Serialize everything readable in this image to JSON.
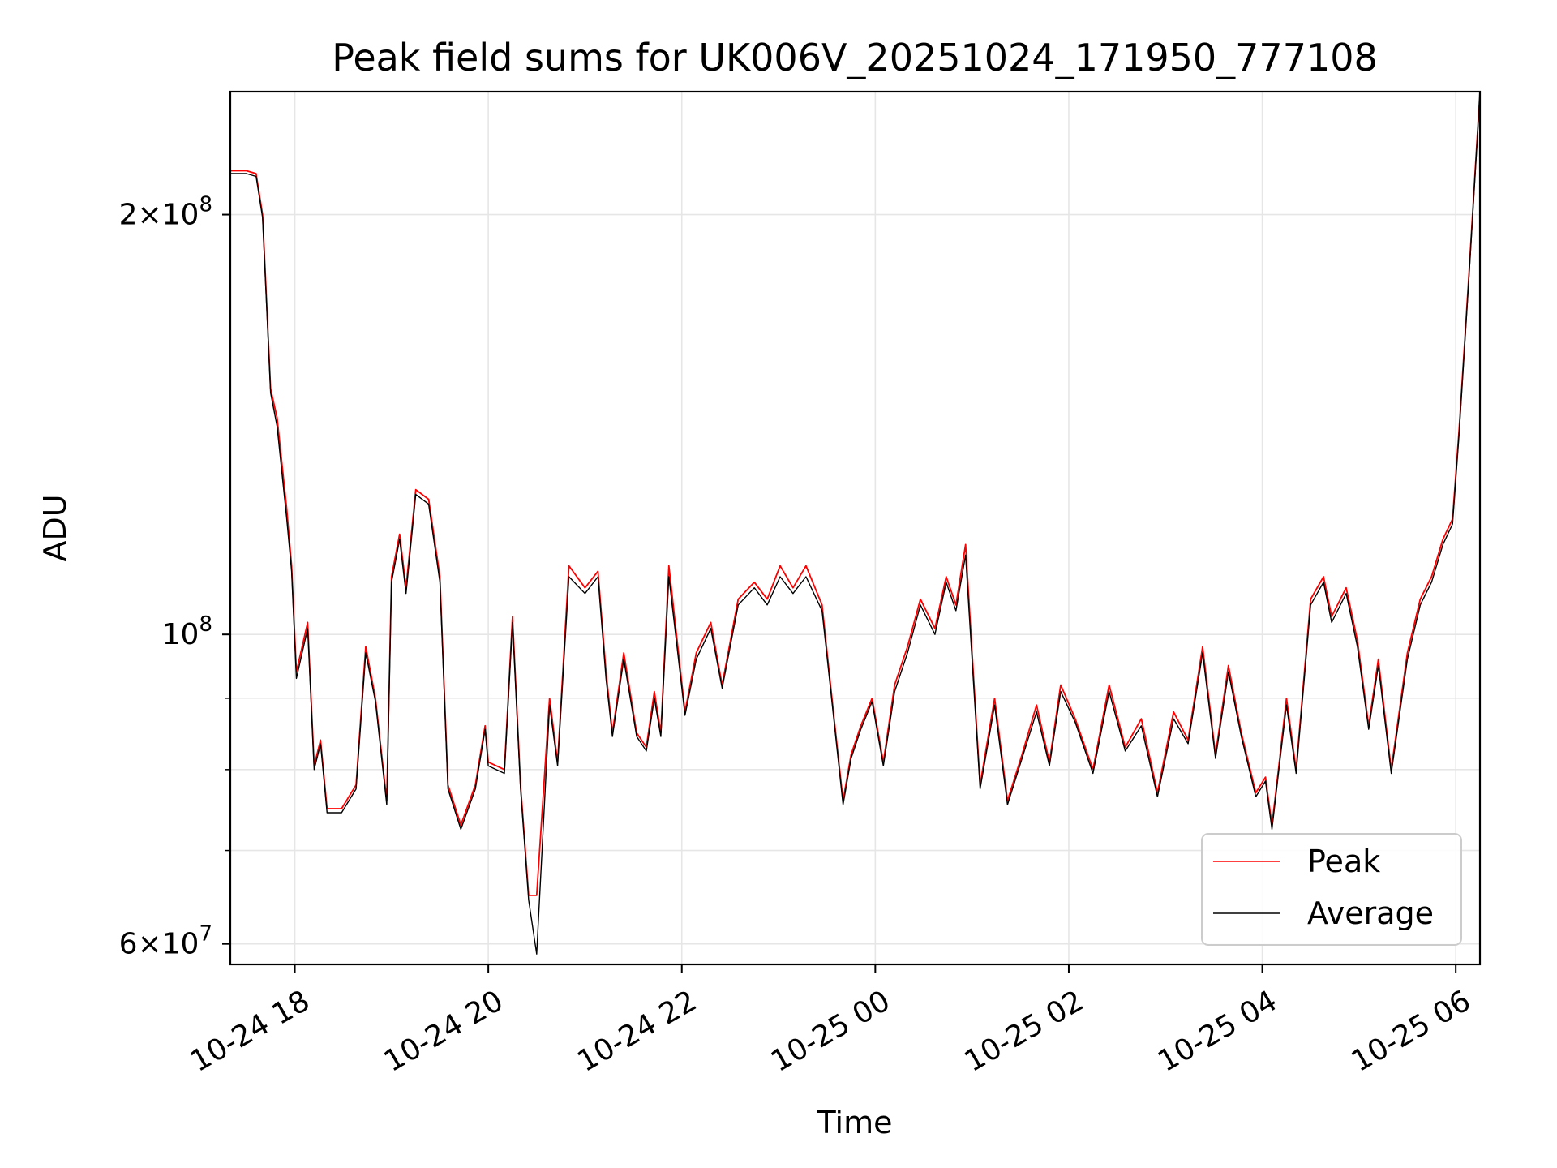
{
  "chart_data": {
    "type": "line",
    "title": "Peak field sums for UK006V_20251024_171950_777108",
    "xlabel": "Time",
    "ylabel": "ADU",
    "yscale": "log",
    "ylim": [
      58000000,
      245000000
    ],
    "xlim": [
      "2025-10-24 17:20",
      "2025-10-25 06:15"
    ],
    "grid": true,
    "legend_position": "lower-right",
    "x_ticks": [
      {
        "t": "2025-10-24 18:00",
        "label": "10-24 18"
      },
      {
        "t": "2025-10-24 20:00",
        "label": "10-24 20"
      },
      {
        "t": "2025-10-24 22:00",
        "label": "10-24 22"
      },
      {
        "t": "2025-10-25 00:00",
        "label": "10-25 00"
      },
      {
        "t": "2025-10-25 02:00",
        "label": "10-25 02"
      },
      {
        "t": "2025-10-25 04:00",
        "label": "10-25 04"
      },
      {
        "t": "2025-10-25 06:00",
        "label": "10-25 06"
      }
    ],
    "y_ticks_major": [
      {
        "value": 60000000,
        "base": "6",
        "exp": "7"
      },
      {
        "value": 100000000,
        "base": "",
        "exp": "8"
      },
      {
        "value": 200000000,
        "base": "2",
        "exp": "8"
      }
    ],
    "y_ticks_minor": [
      70000000,
      80000000,
      90000000
    ],
    "series": [
      {
        "name": "Peak",
        "color": "#ff0000",
        "x": [
          "2025-10-24 17:20",
          "2025-10-24 17:30",
          "2025-10-24 17:36",
          "2025-10-24 17:40",
          "2025-10-24 17:45",
          "2025-10-24 17:49",
          "2025-10-24 17:55",
          "2025-10-24 17:58",
          "2025-10-24 18:01",
          "2025-10-24 18:08",
          "2025-10-24 18:12",
          "2025-10-24 18:16",
          "2025-10-24 18:20",
          "2025-10-24 18:29",
          "2025-10-24 18:38",
          "2025-10-24 18:44",
          "2025-10-24 18:50",
          "2025-10-24 18:57",
          "2025-10-24 19:00",
          "2025-10-24 19:05",
          "2025-10-24 19:09",
          "2025-10-24 19:15",
          "2025-10-24 19:23",
          "2025-10-24 19:30",
          "2025-10-24 19:35",
          "2025-10-24 19:43",
          "2025-10-24 19:52",
          "2025-10-24 19:58",
          "2025-10-24 20:00",
          "2025-10-24 20:10",
          "2025-10-24 20:15",
          "2025-10-24 20:20",
          "2025-10-24 20:25",
          "2025-10-24 20:30",
          "2025-10-24 20:38",
          "2025-10-24 20:43",
          "2025-10-24 20:50",
          "2025-10-24 21:00",
          "2025-10-24 21:08",
          "2025-10-24 21:13",
          "2025-10-24 21:17",
          "2025-10-24 21:24",
          "2025-10-24 21:32",
          "2025-10-24 21:38",
          "2025-10-24 21:43",
          "2025-10-24 21:47",
          "2025-10-24 21:52",
          "2025-10-24 22:02",
          "2025-10-24 22:09",
          "2025-10-24 22:18",
          "2025-10-24 22:25",
          "2025-10-24 22:35",
          "2025-10-24 22:45",
          "2025-10-24 22:53",
          "2025-10-24 23:01",
          "2025-10-24 23:09",
          "2025-10-24 23:17",
          "2025-10-24 23:27",
          "2025-10-24 23:34",
          "2025-10-24 23:40",
          "2025-10-24 23:45",
          "2025-10-24 23:51",
          "2025-10-24 23:58",
          "2025-10-25 00:05",
          "2025-10-25 00:12",
          "2025-10-25 00:20",
          "2025-10-25 00:28",
          "2025-10-25 00:37",
          "2025-10-25 00:44",
          "2025-10-25 00:50",
          "2025-10-25 00:56",
          "2025-10-25 01:05",
          "2025-10-25 01:14",
          "2025-10-25 01:22",
          "2025-10-25 01:31",
          "2025-10-25 01:40",
          "2025-10-25 01:48",
          "2025-10-25 01:55",
          "2025-10-25 02:04",
          "2025-10-25 02:15",
          "2025-10-25 02:25",
          "2025-10-25 02:35",
          "2025-10-25 02:45",
          "2025-10-25 02:55",
          "2025-10-25 03:05",
          "2025-10-25 03:14",
          "2025-10-25 03:23",
          "2025-10-25 03:31",
          "2025-10-25 03:39",
          "2025-10-25 03:47",
          "2025-10-25 03:56",
          "2025-10-25 04:02",
          "2025-10-25 04:06",
          "2025-10-25 04:10",
          "2025-10-25 04:15",
          "2025-10-25 04:21",
          "2025-10-25 04:30",
          "2025-10-25 04:38",
          "2025-10-25 04:43",
          "2025-10-25 04:52",
          "2025-10-25 04:59",
          "2025-10-25 05:06",
          "2025-10-25 05:12",
          "2025-10-25 05:20",
          "2025-10-25 05:30",
          "2025-10-25 05:38",
          "2025-10-25 05:45",
          "2025-10-25 05:52",
          "2025-10-25 05:58",
          "2025-10-25 06:02",
          "2025-10-25 06:08",
          "2025-10-25 06:15"
        ],
        "y": [
          215000000,
          215000000,
          214000000,
          200000000,
          150000000,
          143000000,
          123000000,
          112000000,
          94000000,
          102000000,
          80500000,
          84000000,
          75000000,
          75000000,
          78000000,
          98000000,
          90000000,
          76000000,
          110000000,
          118000000,
          108000000,
          127000000,
          125000000,
          110000000,
          78000000,
          73000000,
          78000000,
          86000000,
          81000000,
          80000000,
          103000000,
          78000000,
          65000000,
          65000000,
          90000000,
          81000000,
          112000000,
          108000000,
          111000000,
          94000000,
          85000000,
          97000000,
          85000000,
          83000000,
          91000000,
          85000000,
          112000000,
          88000000,
          97000000,
          102000000,
          92000000,
          106000000,
          109000000,
          106000000,
          112000000,
          108000000,
          112000000,
          105000000,
          88000000,
          76000000,
          82000000,
          86000000,
          90000000,
          81000000,
          92000000,
          98000000,
          106000000,
          101000000,
          110000000,
          105000000,
          116000000,
          78000000,
          90000000,
          76000000,
          82000000,
          89000000,
          81000000,
          92000000,
          87000000,
          80000000,
          92000000,
          83000000,
          87000000,
          77000000,
          88000000,
          84000000,
          98000000,
          82000000,
          95000000,
          85000000,
          77000000,
          79000000,
          73000000,
          80000000,
          90000000,
          80000000,
          106000000,
          110000000,
          103000000,
          108000000,
          99000000,
          86000000,
          96000000,
          80000000,
          97000000,
          106000000,
          110000000,
          117000000,
          121000000,
          140000000,
          180000000,
          245000000
        ]
      },
      {
        "name": "Average",
        "color": "#000000",
        "x": [
          "2025-10-24 17:20",
          "2025-10-24 17:30",
          "2025-10-24 17:36",
          "2025-10-24 17:40",
          "2025-10-24 17:45",
          "2025-10-24 17:49",
          "2025-10-24 17:55",
          "2025-10-24 17:58",
          "2025-10-24 18:01",
          "2025-10-24 18:08",
          "2025-10-24 18:12",
          "2025-10-24 18:16",
          "2025-10-24 18:20",
          "2025-10-24 18:29",
          "2025-10-24 18:38",
          "2025-10-24 18:44",
          "2025-10-24 18:50",
          "2025-10-24 18:57",
          "2025-10-24 19:00",
          "2025-10-24 19:05",
          "2025-10-24 19:09",
          "2025-10-24 19:15",
          "2025-10-24 19:23",
          "2025-10-24 19:30",
          "2025-10-24 19:35",
          "2025-10-24 19:43",
          "2025-10-24 19:52",
          "2025-10-24 19:58",
          "2025-10-24 20:00",
          "2025-10-24 20:10",
          "2025-10-24 20:15",
          "2025-10-24 20:20",
          "2025-10-24 20:25",
          "2025-10-24 20:30",
          "2025-10-24 20:38",
          "2025-10-24 20:43",
          "2025-10-24 20:50",
          "2025-10-24 21:00",
          "2025-10-24 21:08",
          "2025-10-24 21:13",
          "2025-10-24 21:17",
          "2025-10-24 21:24",
          "2025-10-24 21:32",
          "2025-10-24 21:38",
          "2025-10-24 21:43",
          "2025-10-24 21:47",
          "2025-10-24 21:52",
          "2025-10-24 22:02",
          "2025-10-24 22:09",
          "2025-10-24 22:18",
          "2025-10-24 22:25",
          "2025-10-24 22:35",
          "2025-10-24 22:45",
          "2025-10-24 22:53",
          "2025-10-24 23:01",
          "2025-10-24 23:09",
          "2025-10-24 23:17",
          "2025-10-24 23:27",
          "2025-10-24 23:34",
          "2025-10-24 23:40",
          "2025-10-24 23:45",
          "2025-10-24 23:51",
          "2025-10-24 23:58",
          "2025-10-25 00:05",
          "2025-10-25 00:12",
          "2025-10-25 00:20",
          "2025-10-25 00:28",
          "2025-10-25 00:37",
          "2025-10-25 00:44",
          "2025-10-25 00:50",
          "2025-10-25 00:56",
          "2025-10-25 01:05",
          "2025-10-25 01:14",
          "2025-10-25 01:22",
          "2025-10-25 01:31",
          "2025-10-25 01:40",
          "2025-10-25 01:48",
          "2025-10-25 01:55",
          "2025-10-25 02:04",
          "2025-10-25 02:15",
          "2025-10-25 02:25",
          "2025-10-25 02:35",
          "2025-10-25 02:45",
          "2025-10-25 02:55",
          "2025-10-25 03:05",
          "2025-10-25 03:14",
          "2025-10-25 03:23",
          "2025-10-25 03:31",
          "2025-10-25 03:39",
          "2025-10-25 03:47",
          "2025-10-25 03:56",
          "2025-10-25 04:02",
          "2025-10-25 04:06",
          "2025-10-25 04:10",
          "2025-10-25 04:15",
          "2025-10-25 04:21",
          "2025-10-25 04:30",
          "2025-10-25 04:38",
          "2025-10-25 04:43",
          "2025-10-25 04:52",
          "2025-10-25 04:59",
          "2025-10-25 05:06",
          "2025-10-25 05:12",
          "2025-10-25 05:20",
          "2025-10-25 05:30",
          "2025-10-25 05:38",
          "2025-10-25 05:45",
          "2025-10-25 05:52",
          "2025-10-25 05:58",
          "2025-10-25 06:02",
          "2025-10-25 06:08",
          "2025-10-25 06:15"
        ],
        "y": [
          214000000,
          214000000,
          213000000,
          199000000,
          149000000,
          141000000,
          121000000,
          111000000,
          93000000,
          101000000,
          80000000,
          83500000,
          74500000,
          74500000,
          77500000,
          97000000,
          89500000,
          75500000,
          109000000,
          117000000,
          107000000,
          126000000,
          124000000,
          109000000,
          77500000,
          72500000,
          77500000,
          85500000,
          80500000,
          79500000,
          102000000,
          77500000,
          64500000,
          59000000,
          89000000,
          80500000,
          110000000,
          107000000,
          110000000,
          93000000,
          84500000,
          96000000,
          84500000,
          82500000,
          90000000,
          84500000,
          110000000,
          87500000,
          96000000,
          101000000,
          91500000,
          105000000,
          108000000,
          105000000,
          110000000,
          107000000,
          110000000,
          104000000,
          87500000,
          75500000,
          81500000,
          85500000,
          89500000,
          80500000,
          91000000,
          97000000,
          105000000,
          100000000,
          109000000,
          104000000,
          114000000,
          77500000,
          89000000,
          75500000,
          81500000,
          88000000,
          80500000,
          91000000,
          86500000,
          79500000,
          91000000,
          82500000,
          86000000,
          76500000,
          87000000,
          83500000,
          97000000,
          81500000,
          94000000,
          84500000,
          76500000,
          78500000,
          72500000,
          79500000,
          89000000,
          79500000,
          105000000,
          109000000,
          102000000,
          107000000,
          98000000,
          85500000,
          95000000,
          79500000,
          96000000,
          105000000,
          109000000,
          116000000,
          120000000,
          139000000,
          179000000,
          244000000
        ]
      }
    ]
  }
}
